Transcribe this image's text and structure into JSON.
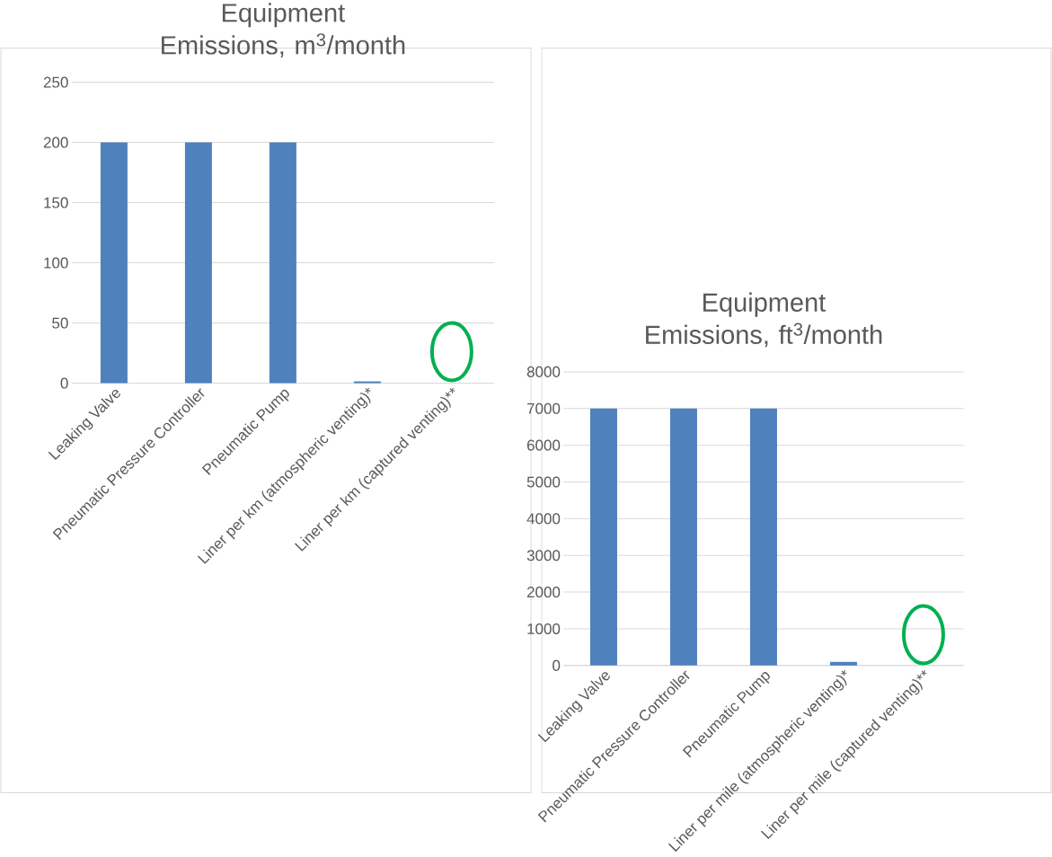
{
  "chart_data": [
    {
      "type": "bar",
      "title": "Equipment Emissions, m$^{3}$/month",
      "categories": [
        "Leaking Valve",
        "Pneumatic Pressure Controller",
        "Pneumatic Pump",
        "Liner per km (atmospheric venting)*",
        "Liner per km (captured venting)**"
      ],
      "values": [
        200,
        200,
        200,
        1.5,
        0
      ],
      "color": "#4f81bd",
      "ylim": [
        0,
        250
      ],
      "yticks": [
        0,
        50,
        100,
        150,
        200,
        250
      ],
      "grid": "y"
    },
    {
      "type": "bar",
      "title": "Equipment Emissions, ft$^{3}$/month",
      "categories": [
        "Leaking Valve",
        "Pneumatic Pressure Controller",
        "Pneumatic Pump",
        "Liner per mile (atmospheric venting)*",
        "Liner per mile (captured venting)**"
      ],
      "values": [
        7000,
        7000,
        7000,
        100,
        0
      ],
      "color": "#4f81bd",
      "ylim": [
        0,
        8000
      ],
      "yticks": [
        0,
        1000,
        2000,
        3000,
        4000,
        5000,
        6000,
        7000,
        8000
      ],
      "grid": "y"
    }
  ]
}
